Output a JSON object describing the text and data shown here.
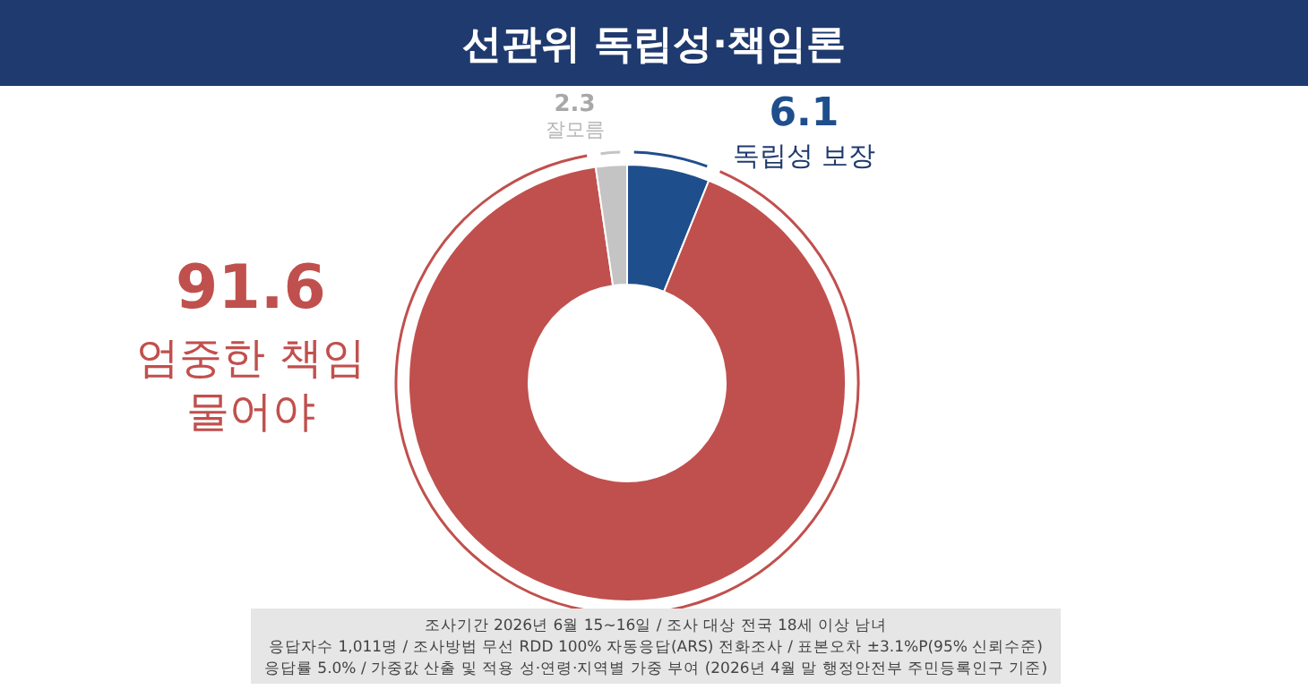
{
  "chart_data": {
    "type": "donut",
    "title": "선관위 독립성·책임론",
    "categories": [
      "독립성 보장",
      "엄중한 책임 물어야",
      "잘모름"
    ],
    "values": [
      6.1,
      91.6,
      2.3
    ],
    "colors": [
      "#1f4e8c",
      "#c0504d",
      "#c4c4c4"
    ],
    "data_labels": true,
    "annotations": [
      "조사기간 2026년 6월 15~16일 / 조사 대상 전국 18세 이상 남녀",
      "응답자수 1,011명 / 조사방법 무선 RDD 100% 자동응답(ARS) 전화조사 / 표본오차 ±3.1%P(95% 신뢰수준)",
      "응답률 5.0% / 가중값 산출 및 적용 성·연령·지역별 가중 부여 (2026년 4월 말 행정안전부 주민등록인구 기준)"
    ]
  }
}
